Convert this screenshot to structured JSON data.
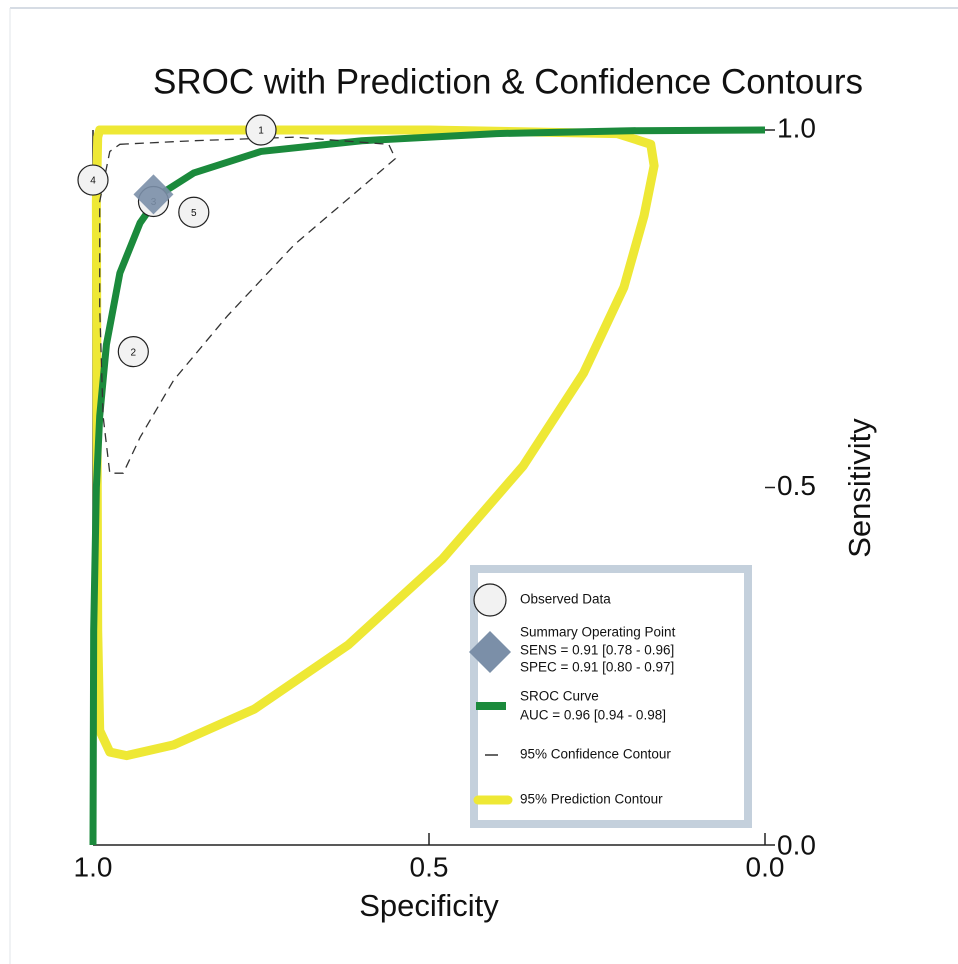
{
  "chart_data": {
    "type": "sroc",
    "title": "SROC with Prediction & Confidence Contours",
    "x_label": "Specificity",
    "y_label": "Sensitivity",
    "xlim": [
      1,
      0
    ],
    "ylim": [
      0,
      1
    ],
    "xticks": [
      {
        "value": 1,
        "label": "1.0"
      },
      {
        "value": 0.5,
        "label": "0.5"
      },
      {
        "value": 0,
        "label": "0.0"
      }
    ],
    "yticks": [
      {
        "value": 0,
        "label": "0.0"
      },
      {
        "value": 0.5,
        "label": "0.5"
      },
      {
        "value": 1,
        "label": "1.0"
      }
    ],
    "series": [
      {
        "name": "95% Prediction Contour",
        "kind": "dotted",
        "color": "#eee835",
        "x": [
          0.99,
          0.5,
          0.22,
          0.17,
          0.165,
          0.18,
          0.21,
          0.27,
          0.36,
          0.48,
          0.62,
          0.76,
          0.88,
          0.95,
          0.975,
          0.99,
          0.993,
          0.994,
          0.995,
          0.993
        ],
        "values": [
          1.0,
          1.0,
          0.995,
          0.98,
          0.95,
          0.88,
          0.78,
          0.66,
          0.53,
          0.4,
          0.28,
          0.19,
          0.14,
          0.125,
          0.13,
          0.16,
          0.3,
          0.6,
          0.9,
          0.99
        ]
      },
      {
        "name": "SROC Curve",
        "kind": "line",
        "color": "#1b8a3c",
        "notes": [
          "AUC = 0.96 [0.94 - 0.98]"
        ],
        "x": [
          1.0,
          0.999,
          0.995,
          0.99,
          0.98,
          0.96,
          0.93,
          0.9,
          0.85,
          0.75,
          0.6,
          0.4,
          0.2,
          0.0
        ],
        "values": [
          0.0,
          0.3,
          0.5,
          0.6,
          0.7,
          0.8,
          0.87,
          0.91,
          0.94,
          0.97,
          0.985,
          0.995,
          0.999,
          1.0
        ]
      },
      {
        "name": "95% Confidence Contour",
        "kind": "dashed",
        "color": "#333333",
        "x": [
          0.96,
          0.85,
          0.7,
          0.56,
          0.55,
          0.6,
          0.7,
          0.8,
          0.88,
          0.93,
          0.955,
          0.975,
          0.985,
          0.99,
          0.99,
          0.975
        ],
        "values": [
          0.98,
          0.985,
          0.99,
          0.98,
          0.96,
          0.92,
          0.84,
          0.74,
          0.65,
          0.57,
          0.52,
          0.52,
          0.6,
          0.75,
          0.9,
          0.97
        ]
      },
      {
        "name": "Observed Data",
        "kind": "points",
        "color": "#f2f2f2",
        "labels": [
          "1",
          "2",
          "3",
          "4",
          "5"
        ],
        "x": [
          0.75,
          0.94,
          0.91,
          1.0,
          0.85
        ],
        "values": [
          1.0,
          0.69,
          0.9,
          0.93,
          0.885
        ]
      },
      {
        "name": "Summary Operating Point",
        "kind": "diamond",
        "color": "#7b8fa8",
        "notes": [
          "SENS = 0.91 [0.78 - 0.96]",
          "SPEC = 0.91 [0.80 - 0.97]"
        ],
        "x": [
          0.91
        ],
        "values": [
          0.91
        ]
      }
    ],
    "legend_order": [
      3,
      4,
      1,
      2,
      0
    ]
  }
}
